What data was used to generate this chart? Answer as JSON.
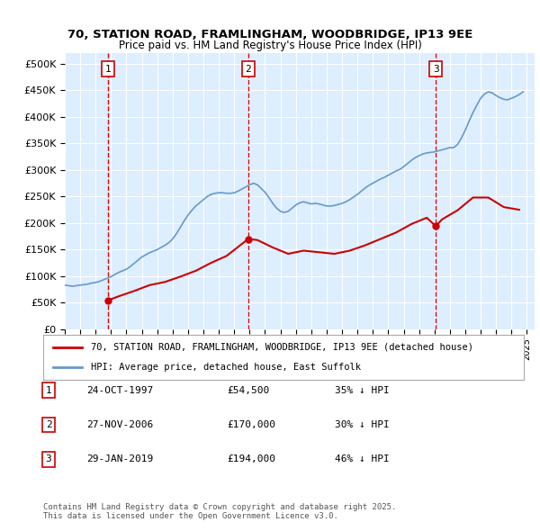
{
  "title_line1": "70, STATION ROAD, FRAMLINGHAM, WOODBRIDGE, IP13 9EE",
  "title_line2": "Price paid vs. HM Land Registry's House Price Index (HPI)",
  "ylabel_ticks": [
    "£0",
    "£50K",
    "£100K",
    "£150K",
    "£200K",
    "£250K",
    "£300K",
    "£350K",
    "£400K",
    "£450K",
    "£500K"
  ],
  "ytick_values": [
    0,
    50000,
    100000,
    150000,
    200000,
    250000,
    300000,
    350000,
    400000,
    450000,
    500000
  ],
  "ylim": [
    0,
    520000
  ],
  "xlim_start": 1995.0,
  "xlim_end": 2025.5,
  "background_color": "#ddeeff",
  "plot_bg_color": "#ddeeff",
  "grid_color": "#ffffff",
  "sale_dates": [
    1997.81,
    2006.91,
    2019.08
  ],
  "sale_prices": [
    54500,
    170000,
    194000
  ],
  "sale_labels": [
    "1",
    "2",
    "3"
  ],
  "vline_color": "#dd0000",
  "sale_marker_color": "#cc0000",
  "hpi_line_color": "#6699cc",
  "sale_line_color": "#cc0000",
  "legend_label_red": "70, STATION ROAD, FRAMLINGHAM, WOODBRIDGE, IP13 9EE (detached house)",
  "legend_label_blue": "HPI: Average price, detached house, East Suffolk",
  "table_entries": [
    {
      "num": "1",
      "date": "24-OCT-1997",
      "price": "£54,500",
      "pct": "35% ↓ HPI"
    },
    {
      "num": "2",
      "date": "27-NOV-2006",
      "price": "£170,000",
      "pct": "30% ↓ HPI"
    },
    {
      "num": "3",
      "date": "29-JAN-2019",
      "price": "£194,000",
      "pct": "46% ↓ HPI"
    }
  ],
  "footnote": "Contains HM Land Registry data © Crown copyright and database right 2025.\nThis data is licensed under the Open Government Licence v3.0.",
  "hpi_data": {
    "years": [
      1995.0,
      1995.25,
      1995.5,
      1995.75,
      1996.0,
      1996.25,
      1996.5,
      1996.75,
      1997.0,
      1997.25,
      1997.5,
      1997.75,
      1998.0,
      1998.25,
      1998.5,
      1998.75,
      1999.0,
      1999.25,
      1999.5,
      1999.75,
      2000.0,
      2000.25,
      2000.5,
      2000.75,
      2001.0,
      2001.25,
      2001.5,
      2001.75,
      2002.0,
      2002.25,
      2002.5,
      2002.75,
      2003.0,
      2003.25,
      2003.5,
      2003.75,
      2004.0,
      2004.25,
      2004.5,
      2004.75,
      2005.0,
      2005.25,
      2005.5,
      2005.75,
      2006.0,
      2006.25,
      2006.5,
      2006.75,
      2007.0,
      2007.25,
      2007.5,
      2007.75,
      2008.0,
      2008.25,
      2008.5,
      2008.75,
      2009.0,
      2009.25,
      2009.5,
      2009.75,
      2010.0,
      2010.25,
      2010.5,
      2010.75,
      2011.0,
      2011.25,
      2011.5,
      2011.75,
      2012.0,
      2012.25,
      2012.5,
      2012.75,
      2013.0,
      2013.25,
      2013.5,
      2013.75,
      2014.0,
      2014.25,
      2014.5,
      2014.75,
      2015.0,
      2015.25,
      2015.5,
      2015.75,
      2016.0,
      2016.25,
      2016.5,
      2016.75,
      2017.0,
      2017.25,
      2017.5,
      2017.75,
      2018.0,
      2018.25,
      2018.5,
      2018.75,
      2019.0,
      2019.25,
      2019.5,
      2019.75,
      2020.0,
      2020.25,
      2020.5,
      2020.75,
      2021.0,
      2021.25,
      2021.5,
      2021.75,
      2022.0,
      2022.25,
      2022.5,
      2022.75,
      2023.0,
      2023.25,
      2023.5,
      2023.75,
      2024.0,
      2024.25,
      2024.5,
      2024.75
    ],
    "values": [
      83000,
      82000,
      81000,
      82000,
      83000,
      84000,
      85000,
      87000,
      88000,
      90000,
      93000,
      96000,
      99000,
      103000,
      107000,
      110000,
      113000,
      118000,
      124000,
      130000,
      136000,
      140000,
      144000,
      147000,
      150000,
      154000,
      158000,
      163000,
      170000,
      180000,
      192000,
      204000,
      215000,
      224000,
      232000,
      238000,
      244000,
      250000,
      254000,
      256000,
      257000,
      257000,
      256000,
      256000,
      257000,
      260000,
      264000,
      268000,
      272000,
      275000,
      272000,
      265000,
      258000,
      248000,
      237000,
      228000,
      222000,
      220000,
      222000,
      228000,
      234000,
      238000,
      240000,
      238000,
      236000,
      237000,
      236000,
      234000,
      232000,
      232000,
      233000,
      235000,
      237000,
      240000,
      244000,
      249000,
      254000,
      260000,
      266000,
      271000,
      275000,
      279000,
      283000,
      286000,
      290000,
      294000,
      298000,
      301000,
      306000,
      312000,
      318000,
      323000,
      327000,
      330000,
      332000,
      333000,
      334000,
      336000,
      338000,
      340000,
      342000,
      342000,
      348000,
      360000,
      375000,
      392000,
      408000,
      422000,
      435000,
      443000,
      447000,
      445000,
      440000,
      436000,
      433000,
      432000,
      435000,
      438000,
      442000,
      447000
    ]
  },
  "sale_line_data": {
    "years": [
      1997.81,
      1998.5,
      1999.5,
      2000.5,
      2001.5,
      2002.5,
      2003.5,
      2004.5,
      2005.5,
      2006.91,
      2007.5,
      2008.5,
      2009.5,
      2010.5,
      2011.5,
      2012.5,
      2013.5,
      2014.5,
      2015.5,
      2016.5,
      2017.5,
      2018.5,
      2019.08,
      2019.5,
      2020.5,
      2021.5,
      2022.5,
      2023.5,
      2024.5
    ],
    "values": [
      54500,
      62000,
      72000,
      83000,
      89000,
      99000,
      110000,
      125000,
      138000,
      170000,
      168000,
      154000,
      142000,
      148000,
      145000,
      142000,
      148000,
      158000,
      170000,
      182000,
      198000,
      210000,
      194000,
      207000,
      224000,
      248000,
      248000,
      230000,
      225000
    ]
  }
}
